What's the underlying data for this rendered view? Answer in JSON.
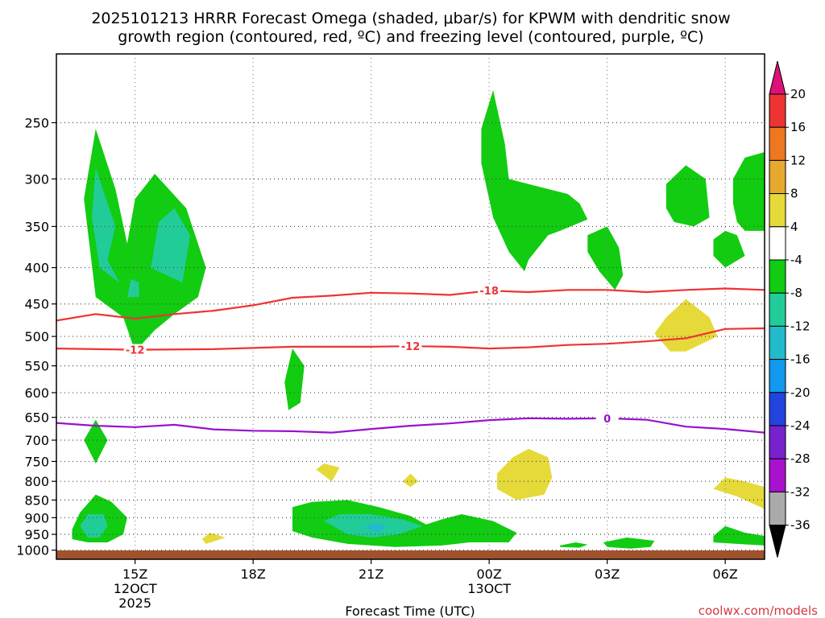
{
  "chart_data": {
    "type": "contour",
    "title_lines": [
      "2025101213 HRRR Forecast Omega (shaded, μbar/s) for KPWM with dendritic snow",
      "growth region (contoured, red, ºC) and freezing level (contoured, purple, ºC)"
    ],
    "xlabel": "Forecast Time (UTC)",
    "ylabel": "",
    "watermark": "coolwx.com/models",
    "x_ticks": [
      {
        "h": 15,
        "lines": [
          "15Z",
          "12OCT",
          "2025"
        ]
      },
      {
        "h": 18,
        "lines": [
          "18Z"
        ]
      },
      {
        "h": 21,
        "lines": [
          "21Z"
        ]
      },
      {
        "h": 24,
        "lines": [
          "00Z",
          "13OCT"
        ]
      },
      {
        "h": 27,
        "lines": [
          "03Z"
        ]
      },
      {
        "h": 30,
        "lines": [
          "06Z"
        ]
      }
    ],
    "y_scale": "log (pressure, hPa)",
    "y_ticks": [
      250,
      300,
      350,
      400,
      450,
      500,
      550,
      600,
      650,
      700,
      750,
      800,
      850,
      900,
      950,
      1000
    ],
    "grid": true,
    "x_range_hours": [
      13,
      31
    ],
    "y_range_hpa": [
      200,
      1030
    ],
    "colorbar": {
      "labels": [
        "20",
        "16",
        "12",
        "8",
        "4",
        "-4",
        "-8",
        "-12",
        "-16",
        "-20",
        "-24",
        "-28",
        "-32",
        "-36"
      ],
      "colors": [
        "#dd1177",
        "#ee3333",
        "#ee7722",
        "#e6a92e",
        "#e6da3a",
        "#ffffff",
        "#11cc11",
        "#22cc99",
        "#22bbcc",
        "#1199ee",
        "#2244dd",
        "#7722cc",
        "#aa11cc",
        "#aaaaaa",
        "#000000"
      ]
    },
    "contour_lines": [
      {
        "label": "-18",
        "color": "#ee3333",
        "points": [
          [
            13,
            475
          ],
          [
            14,
            465
          ],
          [
            15,
            472
          ],
          [
            16,
            465
          ],
          [
            17,
            460
          ],
          [
            18,
            452
          ],
          [
            19,
            441
          ],
          [
            20,
            438
          ],
          [
            21,
            434
          ],
          [
            22,
            435
          ],
          [
            23,
            437
          ],
          [
            24,
            431
          ],
          [
            25,
            433
          ],
          [
            26,
            430
          ],
          [
            27,
            430
          ],
          [
            28,
            433
          ],
          [
            29,
            430
          ],
          [
            30,
            428
          ],
          [
            31,
            430
          ]
        ]
      },
      {
        "label": "-12",
        "color": "#ee3333",
        "points": [
          [
            13,
            520
          ],
          [
            15,
            522
          ],
          [
            17,
            521
          ],
          [
            18,
            519
          ],
          [
            19,
            517
          ],
          [
            20,
            517
          ],
          [
            21,
            517
          ],
          [
            22,
            516
          ],
          [
            23,
            517
          ],
          [
            24,
            520
          ],
          [
            25,
            518
          ],
          [
            26,
            514
          ],
          [
            27,
            512
          ],
          [
            28,
            508
          ],
          [
            29,
            503
          ],
          [
            30,
            488
          ],
          [
            31,
            487
          ]
        ]
      },
      {
        "label": "0",
        "color": "#9911cc",
        "points": [
          [
            13,
            662
          ],
          [
            14,
            668
          ],
          [
            15,
            671
          ],
          [
            16,
            666
          ],
          [
            17,
            676
          ],
          [
            18,
            679
          ],
          [
            19,
            680
          ],
          [
            20,
            683
          ],
          [
            21,
            675
          ],
          [
            22,
            668
          ],
          [
            23,
            663
          ],
          [
            24,
            656
          ],
          [
            25,
            652
          ],
          [
            26,
            653
          ],
          [
            27,
            652
          ],
          [
            28,
            655
          ],
          [
            29,
            670
          ],
          [
            30,
            675
          ],
          [
            31,
            683
          ]
        ]
      }
    ],
    "omega_regions": [
      {
        "level": "-4",
        "color": "#11cc11",
        "points": [
          [
            14,
            440
          ],
          [
            13.7,
            320
          ],
          [
            14,
            255
          ],
          [
            14.5,
            310
          ],
          [
            14.8,
            370
          ],
          [
            15,
            320
          ],
          [
            15.5,
            295
          ],
          [
            16.3,
            330
          ],
          [
            16.8,
            400
          ],
          [
            16.6,
            440
          ],
          [
            16,
            465
          ],
          [
            15.5,
            490
          ],
          [
            15,
            525
          ],
          [
            14.7,
            470
          ]
        ]
      },
      {
        "level": "-8",
        "color": "#22cc99",
        "points": [
          [
            14.1,
            400
          ],
          [
            13.9,
            340
          ],
          [
            14,
            290
          ],
          [
            14.5,
            350
          ],
          [
            14.3,
            390
          ],
          [
            14.6,
            420
          ]
        ]
      },
      {
        "level": "-8",
        "color": "#22cc99",
        "points": [
          [
            15.4,
            400
          ],
          [
            15.6,
            345
          ],
          [
            16,
            330
          ],
          [
            16.4,
            360
          ],
          [
            16.2,
            420
          ]
        ]
      },
      {
        "level": "-8",
        "color": "#22cc99",
        "points": [
          [
            14.8,
            440
          ],
          [
            14.9,
            415
          ],
          [
            15.1,
            420
          ],
          [
            15.1,
            440
          ]
        ]
      },
      {
        "level": "-4",
        "color": "#11cc11",
        "points": [
          [
            13.7,
            700
          ],
          [
            14,
            655
          ],
          [
            14.3,
            700
          ],
          [
            14,
            755
          ]
        ]
      },
      {
        "level": "-4",
        "color": "#11cc11",
        "points": [
          [
            13.4,
            935
          ],
          [
            13.6,
            885
          ],
          [
            14,
            835
          ],
          [
            14.4,
            855
          ],
          [
            14.8,
            900
          ],
          [
            14.7,
            950
          ],
          [
            14.3,
            975
          ],
          [
            13.8,
            975
          ],
          [
            13.4,
            965
          ]
        ]
      },
      {
        "level": "-8",
        "color": "#22cc99",
        "points": [
          [
            13.6,
            925
          ],
          [
            13.8,
            890
          ],
          [
            14.2,
            890
          ],
          [
            14.3,
            925
          ],
          [
            14.1,
            960
          ],
          [
            13.8,
            960
          ]
        ]
      },
      {
        "level": "-4",
        "color": "#11cc11",
        "points": [
          [
            18.8,
            580
          ],
          [
            19,
            520
          ],
          [
            19.3,
            550
          ],
          [
            19.2,
            620
          ],
          [
            18.9,
            635
          ]
        ]
      },
      {
        "level": "-4",
        "color": "#11cc11",
        "points": [
          [
            19,
            895
          ],
          [
            19,
            870
          ],
          [
            19.5,
            855
          ],
          [
            20.4,
            850
          ],
          [
            21.2,
            870
          ],
          [
            22,
            895
          ],
          [
            22.4,
            920
          ],
          [
            22.8,
            905
          ],
          [
            23.3,
            890
          ],
          [
            24.1,
            910
          ],
          [
            24.7,
            945
          ],
          [
            24.5,
            975
          ],
          [
            23.5,
            975
          ],
          [
            22.8,
            985
          ],
          [
            21.6,
            990
          ],
          [
            20.4,
            980
          ],
          [
            19.5,
            960
          ],
          [
            19,
            940
          ]
        ]
      },
      {
        "level": "-8",
        "color": "#22cc99",
        "points": [
          [
            19.8,
            910
          ],
          [
            20.2,
            890
          ],
          [
            21,
            890
          ],
          [
            21.8,
            905
          ],
          [
            22.3,
            925
          ],
          [
            21.7,
            950
          ],
          [
            21,
            960
          ],
          [
            20.4,
            950
          ]
        ]
      },
      {
        "level": "-12",
        "color": "#22bbcc",
        "points": [
          [
            20.8,
            930
          ],
          [
            21.1,
            915
          ],
          [
            21.4,
            925
          ],
          [
            21.2,
            945
          ]
        ]
      },
      {
        "level": "-4",
        "color": "#11cc11",
        "points": [
          [
            23.8,
            285
          ],
          [
            23.8,
            255
          ],
          [
            24.1,
            225
          ],
          [
            24.4,
            268
          ],
          [
            24.5,
            300
          ],
          [
            25,
            305
          ],
          [
            26,
            315
          ],
          [
            26.3,
            325
          ],
          [
            26.5,
            342
          ],
          [
            25.8,
            355
          ],
          [
            25.5,
            360
          ],
          [
            25,
            390
          ],
          [
            24.9,
            405
          ],
          [
            24.5,
            380
          ],
          [
            24.1,
            340
          ]
        ]
      },
      {
        "level": "-4",
        "color": "#11cc11",
        "points": [
          [
            26.5,
            360
          ],
          [
            27,
            350
          ],
          [
            27.3,
            375
          ],
          [
            27.4,
            410
          ],
          [
            27.2,
            430
          ],
          [
            26.8,
            405
          ],
          [
            26.5,
            380
          ]
        ]
      },
      {
        "level": "-4",
        "color": "#11cc11",
        "points": [
          [
            28.5,
            330
          ],
          [
            28.5,
            305
          ],
          [
            29,
            287
          ],
          [
            29.5,
            300
          ],
          [
            29.6,
            340
          ],
          [
            29.2,
            350
          ],
          [
            28.7,
            345
          ]
        ]
      },
      {
        "level": "-4",
        "color": "#11cc11",
        "points": [
          [
            29.7,
            365
          ],
          [
            30,
            355
          ],
          [
            30.3,
            360
          ],
          [
            30.5,
            385
          ],
          [
            30,
            400
          ],
          [
            29.7,
            385
          ]
        ]
      },
      {
        "level": "-4",
        "color": "#11cc11",
        "points": [
          [
            30.2,
            300
          ],
          [
            30.5,
            280
          ],
          [
            31,
            275
          ],
          [
            31,
            355
          ],
          [
            30.5,
            355
          ],
          [
            30.3,
            345
          ],
          [
            30.2,
            325
          ]
        ]
      },
      {
        "level": "-4",
        "color": "#11cc11",
        "points": [
          [
            29.7,
            955
          ],
          [
            30,
            925
          ],
          [
            30.5,
            945
          ],
          [
            31,
            955
          ],
          [
            31,
            985
          ],
          [
            30.3,
            980
          ],
          [
            29.7,
            975
          ]
        ]
      },
      {
        "level": "-4",
        "color": "#11cc11",
        "points": [
          [
            26.9,
            975
          ],
          [
            27.5,
            960
          ],
          [
            28.2,
            970
          ],
          [
            28.1,
            990
          ],
          [
            27.6,
            995
          ],
          [
            27,
            990
          ]
        ]
      },
      {
        "level": "-4",
        "color": "#11cc11",
        "points": [
          [
            25.8,
            985
          ],
          [
            26.2,
            975
          ],
          [
            26.5,
            982
          ],
          [
            26.3,
            992
          ],
          [
            25.8,
            990
          ]
        ]
      },
      {
        "level": "4",
        "color": "#e6da3a",
        "points": [
          [
            28.2,
            495
          ],
          [
            28.5,
            470
          ],
          [
            29,
            443
          ],
          [
            29.6,
            470
          ],
          [
            29.8,
            500
          ],
          [
            29,
            525
          ],
          [
            28.6,
            525
          ]
        ]
      },
      {
        "level": "4",
        "color": "#e6da3a",
        "points": [
          [
            24.2,
            780
          ],
          [
            24.6,
            740
          ],
          [
            25,
            720
          ],
          [
            25.5,
            740
          ],
          [
            25.6,
            790
          ],
          [
            25.4,
            835
          ],
          [
            24.7,
            850
          ],
          [
            24.2,
            820
          ]
        ]
      },
      {
        "level": "4",
        "color": "#e6da3a",
        "points": [
          [
            19.6,
            770
          ],
          [
            19.8,
            755
          ],
          [
            20.2,
            765
          ],
          [
            20,
            800
          ]
        ]
      },
      {
        "level": "4",
        "color": "#e6da3a",
        "points": [
          [
            21.8,
            800
          ],
          [
            22,
            780
          ],
          [
            22.2,
            800
          ],
          [
            22,
            815
          ]
        ]
      },
      {
        "level": "4",
        "color": "#e6da3a",
        "points": [
          [
            16.7,
            965
          ],
          [
            16.9,
            945
          ],
          [
            17.3,
            960
          ],
          [
            16.8,
            980
          ]
        ]
      },
      {
        "level": "4",
        "color": "#e6da3a",
        "points": [
          [
            29.7,
            820
          ],
          [
            30,
            790
          ],
          [
            30.5,
            800
          ],
          [
            31,
            815
          ],
          [
            31,
            875
          ],
          [
            30.3,
            840
          ]
        ]
      }
    ]
  }
}
